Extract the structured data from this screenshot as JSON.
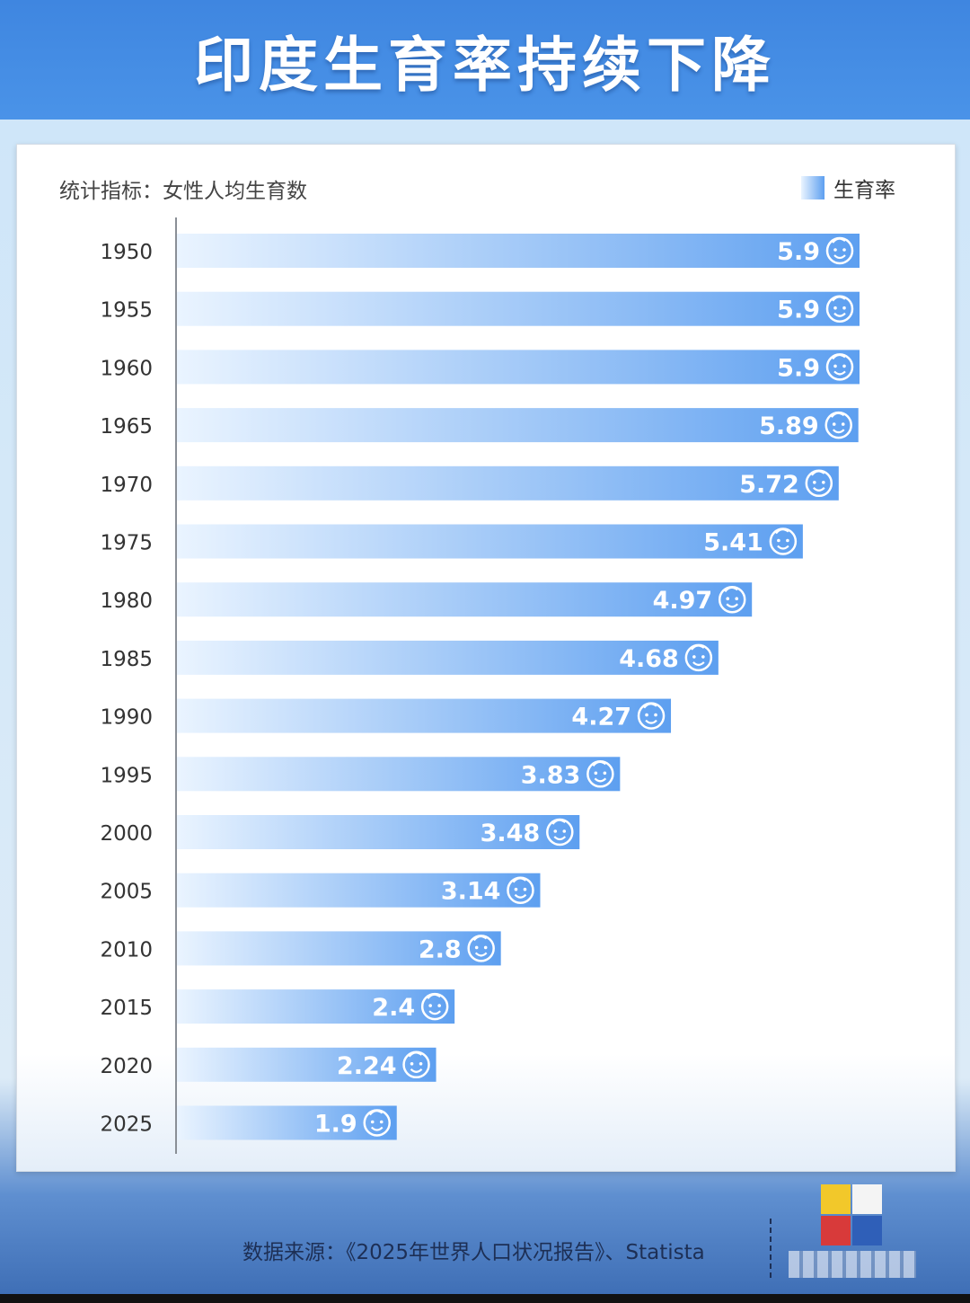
{
  "header": {
    "title": "印度生育率持续下降"
  },
  "metric_label": "统计指标：女性人均生育数",
  "legend_label": "生育率",
  "source": "数据来源：《2025年世界人口状况报告》、Statista",
  "colors": {
    "banner": "#3f86e0",
    "bar_end": "#5d9ff0",
    "bar_start": "#eaf4ff",
    "value_text": "#ffffff"
  },
  "icons": {
    "value_icon": "baby-face-icon",
    "logo": "puzzle-logo-icon"
  },
  "chart_data": {
    "type": "bar",
    "orientation": "horizontal",
    "title": "印度生育率持续下降",
    "categories": [
      "1950",
      "1955",
      "1960",
      "1965",
      "1970",
      "1975",
      "1980",
      "1985",
      "1990",
      "1995",
      "2000",
      "2005",
      "2010",
      "2015",
      "2020",
      "2025"
    ],
    "series": [
      {
        "name": "生育率",
        "values": [
          5.9,
          5.9,
          5.9,
          5.89,
          5.72,
          5.41,
          4.97,
          4.68,
          4.27,
          3.83,
          3.48,
          3.14,
          2.8,
          2.4,
          2.24,
          1.9
        ]
      }
    ],
    "value_labels": [
      "5.9",
      "5.9",
      "5.9",
      "5.89",
      "5.72",
      "5.41",
      "4.97",
      "4.68",
      "4.27",
      "3.83",
      "3.48",
      "3.14",
      "2.8",
      "2.4",
      "2.24",
      "1.9"
    ],
    "xlim": [
      0,
      5.9
    ],
    "grid": false,
    "legend_position": "top-right"
  }
}
